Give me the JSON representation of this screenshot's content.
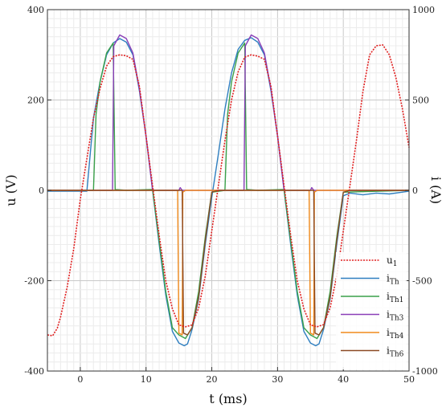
{
  "chart_data": {
    "type": "line",
    "title": "",
    "xlabel": "t (ms)",
    "ylabel_left": "u (V)",
    "ylabel_right": "i (A)",
    "xlim": [
      -5,
      50
    ],
    "ylim_left": [
      -400,
      400
    ],
    "ylim_right": [
      -1000,
      1000
    ],
    "x_ticks": [
      "0",
      "10",
      "20",
      "30",
      "40",
      "50"
    ],
    "y_ticks_left": [
      "400",
      "200",
      "0",
      "-200",
      "-400"
    ],
    "y_ticks_right": [
      "1000",
      "500",
      "0",
      "-500",
      "-1000"
    ],
    "grid": true,
    "legend_position": "bottom-right",
    "series": [
      {
        "name": "u1",
        "label_main": "u",
        "label_sub": "1",
        "axis": "left",
        "color": "#e02020",
        "style": "dotted",
        "points": [
          [
            -5,
            -320
          ],
          [
            -4.2,
            -322
          ],
          [
            -3.5,
            -305
          ],
          [
            -3,
            -280
          ],
          [
            -2,
            -215
          ],
          [
            -1,
            -130
          ],
          [
            0,
            -20
          ],
          [
            1,
            70
          ],
          [
            2,
            160
          ],
          [
            3,
            225
          ],
          [
            4,
            275
          ],
          [
            5,
            296
          ],
          [
            6,
            300
          ],
          [
            7,
            298
          ],
          [
            8,
            290
          ],
          [
            9,
            230
          ],
          [
            10,
            120
          ],
          [
            11,
            10
          ],
          [
            12,
            -100
          ],
          [
            13,
            -200
          ],
          [
            14,
            -262
          ],
          [
            15,
            -298
          ],
          [
            16,
            -302
          ],
          [
            17,
            -298
          ],
          [
            18,
            -260
          ],
          [
            19,
            -190
          ],
          [
            20,
            -90
          ],
          [
            21,
            10
          ],
          [
            22,
            110
          ],
          [
            23,
            200
          ],
          [
            24,
            262
          ],
          [
            25,
            295
          ],
          [
            26,
            300
          ],
          [
            27,
            297
          ],
          [
            28,
            290
          ],
          [
            29,
            230
          ],
          [
            30,
            120
          ],
          [
            31,
            10
          ],
          [
            32,
            -100
          ],
          [
            33,
            -200
          ],
          [
            34,
            -262
          ],
          [
            35,
            -298
          ],
          [
            36,
            -302
          ],
          [
            37,
            -297
          ],
          [
            38,
            -260
          ],
          [
            39,
            -190
          ],
          [
            40,
            -90
          ],
          [
            41,
            10
          ],
          [
            42,
            110
          ],
          [
            43,
            220
          ],
          [
            44,
            300
          ],
          [
            45,
            320
          ],
          [
            46,
            322
          ],
          [
            47,
            300
          ],
          [
            48,
            250
          ],
          [
            49,
            180
          ],
          [
            50,
            95
          ]
        ]
      },
      {
        "name": "iTh",
        "label_main": "i",
        "label_sub": "Th",
        "axis": "right",
        "color": "#2f7fc0",
        "style": "solid",
        "points": [
          [
            -5,
            -5
          ],
          [
            1,
            -5
          ],
          [
            2,
            400
          ],
          [
            3,
            600
          ],
          [
            4,
            750
          ],
          [
            5,
            815
          ],
          [
            6,
            840
          ],
          [
            7,
            820
          ],
          [
            8,
            750
          ],
          [
            9,
            550
          ],
          [
            10,
            300
          ],
          [
            11,
            0
          ],
          [
            12,
            -300
          ],
          [
            13,
            -580
          ],
          [
            14,
            -780
          ],
          [
            15,
            -845
          ],
          [
            15.8,
            -860
          ],
          [
            16.3,
            -850
          ],
          [
            17,
            -770
          ],
          [
            18,
            -600
          ],
          [
            19,
            -300
          ],
          [
            20,
            -40
          ],
          [
            21,
            200
          ],
          [
            22,
            450
          ],
          [
            23,
            650
          ],
          [
            24,
            780
          ],
          [
            25,
            830
          ],
          [
            26,
            845
          ],
          [
            27,
            820
          ],
          [
            28,
            750
          ],
          [
            29,
            550
          ],
          [
            30,
            300
          ],
          [
            31,
            0
          ],
          [
            32,
            -300
          ],
          [
            33,
            -580
          ],
          [
            34,
            -780
          ],
          [
            35,
            -845
          ],
          [
            35.8,
            -860
          ],
          [
            36.3,
            -850
          ],
          [
            37,
            -770
          ],
          [
            38,
            -600
          ],
          [
            39,
            -300
          ],
          [
            40,
            -30
          ],
          [
            41,
            -15
          ],
          [
            43,
            -25
          ],
          [
            45,
            -15
          ],
          [
            47,
            -20
          ],
          [
            50,
            -5
          ]
        ]
      },
      {
        "name": "iTh1",
        "label_main": "i",
        "label_sub": "Th1",
        "axis": "right",
        "color": "#3aa04a",
        "style": "solid",
        "points": [
          [
            -5,
            0
          ],
          [
            2,
            0
          ],
          [
            2.4,
            420
          ],
          [
            3,
            600
          ],
          [
            4,
            760
          ],
          [
            5,
            815
          ],
          [
            5.3,
            5
          ],
          [
            7,
            0
          ],
          [
            11,
            5
          ],
          [
            12,
            -280
          ],
          [
            13,
            -560
          ],
          [
            14,
            -760
          ],
          [
            15,
            -800
          ],
          [
            16,
            -820
          ],
          [
            17,
            -760
          ],
          [
            18,
            -560
          ],
          [
            19,
            -260
          ],
          [
            20,
            -10
          ],
          [
            22,
            0
          ],
          [
            22.4,
            420
          ],
          [
            23,
            600
          ],
          [
            24,
            760
          ],
          [
            25,
            815
          ],
          [
            25.3,
            5
          ],
          [
            27,
            0
          ],
          [
            31,
            5
          ],
          [
            32,
            -280
          ],
          [
            33,
            -560
          ],
          [
            34,
            -760
          ],
          [
            35,
            -800
          ],
          [
            36,
            -820
          ],
          [
            37,
            -760
          ],
          [
            38,
            -560
          ],
          [
            39,
            -260
          ],
          [
            40,
            -10
          ],
          [
            50,
            0
          ]
        ]
      },
      {
        "name": "iTh3",
        "label_main": "i",
        "label_sub": "Th3",
        "axis": "right",
        "color": "#8a3fb8",
        "style": "solid",
        "points": [
          [
            -5,
            0
          ],
          [
            4.9,
            0
          ],
          [
            5.1,
            800
          ],
          [
            6,
            860
          ],
          [
            7,
            840
          ],
          [
            8,
            760
          ],
          [
            9,
            560
          ],
          [
            10,
            300
          ],
          [
            11,
            0
          ],
          [
            15,
            0
          ],
          [
            15.2,
            15
          ],
          [
            15.5,
            0
          ],
          [
            24.9,
            0
          ],
          [
            25.1,
            800
          ],
          [
            26,
            860
          ],
          [
            27,
            840
          ],
          [
            28,
            760
          ],
          [
            29,
            560
          ],
          [
            30,
            300
          ],
          [
            31,
            0
          ],
          [
            35,
            0
          ],
          [
            35.2,
            15
          ],
          [
            35.5,
            0
          ],
          [
            50,
            0
          ]
        ]
      },
      {
        "name": "iTh4",
        "label_main": "i",
        "label_sub": "Th4",
        "axis": "right",
        "color": "#f08a1c",
        "style": "solid",
        "points": [
          [
            -5,
            0
          ],
          [
            14.8,
            0
          ],
          [
            15,
            -790
          ],
          [
            15.5,
            -800
          ],
          [
            15.6,
            -10
          ],
          [
            16,
            0
          ],
          [
            34.8,
            0
          ],
          [
            35,
            -790
          ],
          [
            35.5,
            -800
          ],
          [
            35.6,
            -10
          ],
          [
            36,
            0
          ],
          [
            50,
            0
          ]
        ]
      },
      {
        "name": "iTh6",
        "label_main": "i",
        "label_sub": "Th6",
        "axis": "right",
        "color": "#8b4a24",
        "style": "solid",
        "points": [
          [
            -5,
            0
          ],
          [
            15.5,
            0
          ],
          [
            15.7,
            -790
          ],
          [
            16.3,
            -800
          ],
          [
            17,
            -760
          ],
          [
            18,
            -590
          ],
          [
            19,
            -280
          ],
          [
            20,
            -10
          ],
          [
            21,
            0
          ],
          [
            35.5,
            0
          ],
          [
            35.7,
            -790
          ],
          [
            36.3,
            -800
          ],
          [
            37,
            -760
          ],
          [
            38,
            -590
          ],
          [
            39,
            -280
          ],
          [
            40,
            -10
          ],
          [
            41,
            0
          ],
          [
            50,
            0
          ]
        ]
      }
    ]
  }
}
